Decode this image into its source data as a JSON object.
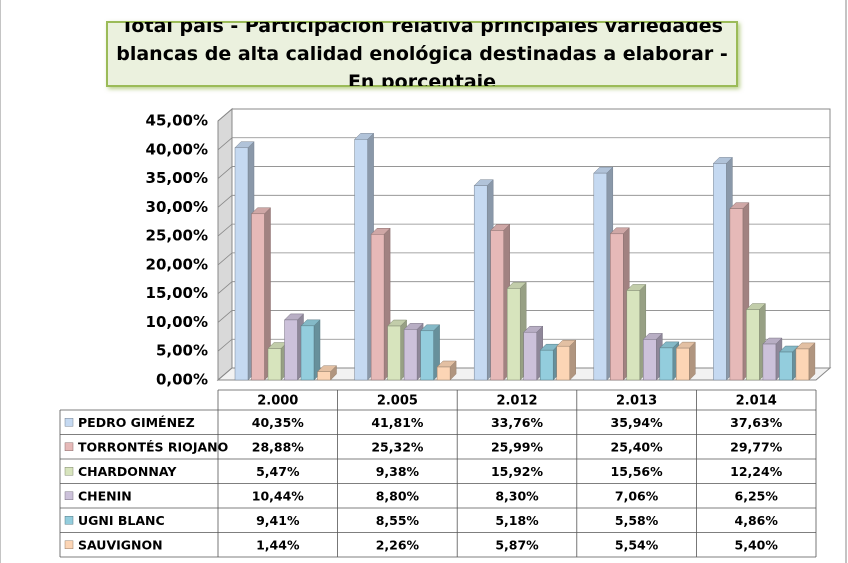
{
  "chart_data": {
    "type": "bar3d",
    "title": "Total pais  - Participación relativa principales variedades blancas de alta calidad enológica destinadas a elaborar - En porcentaje",
    "categories": [
      "2.000",
      "2.005",
      "2.012",
      "2.013",
      "2.014"
    ],
    "series": [
      {
        "name": "PEDRO GIMÉNEZ",
        "color": "#c5d9f1",
        "values": [
          40.35,
          41.81,
          33.76,
          35.94,
          37.63
        ],
        "value_labels": [
          "40,35%",
          "41,81%",
          "33,76%",
          "35,94%",
          "37,63%"
        ]
      },
      {
        "name": "TORRONTÉS RIOJANO",
        "color": "#e6b9b8",
        "values": [
          28.88,
          25.32,
          25.99,
          25.4,
          29.77
        ],
        "value_labels": [
          "28,88%",
          "25,32%",
          "25,99%",
          "25,40%",
          "29,77%"
        ]
      },
      {
        "name": "CHARDONNAY",
        "color": "#d7e4bd",
        "values": [
          5.47,
          9.38,
          15.92,
          15.56,
          12.24
        ],
        "value_labels": [
          "5,47%",
          "9,38%",
          "15,92%",
          "15,56%",
          "12,24%"
        ]
      },
      {
        "name": "CHENIN",
        "color": "#ccc1da",
        "values": [
          10.44,
          8.8,
          8.3,
          7.06,
          6.25
        ],
        "value_labels": [
          "10,44%",
          "8,80%",
          "8,30%",
          "7,06%",
          "6,25%"
        ]
      },
      {
        "name": "UGNI BLANC",
        "color": "#93cddd",
        "values": [
          9.41,
          8.55,
          5.18,
          5.58,
          4.86
        ],
        "value_labels": [
          "9,41%",
          "8,55%",
          "5,18%",
          "5,58%",
          "4,86%"
        ]
      },
      {
        "name": "SAUVIGNON",
        "color": "#fcd5b5",
        "values": [
          1.44,
          2.26,
          5.87,
          5.54,
          5.4
        ],
        "value_labels": [
          "1,44%",
          "2,26%",
          "5,87%",
          "5,54%",
          "5,40%"
        ]
      }
    ],
    "ylim": [
      0,
      45
    ],
    "yticks": [
      {
        "value": 0,
        "label": "0,00%"
      },
      {
        "value": 5,
        "label": "5,00%"
      },
      {
        "value": 10,
        "label": "10,00%"
      },
      {
        "value": 15,
        "label": "15,00%"
      },
      {
        "value": 20,
        "label": "20,00%"
      },
      {
        "value": 25,
        "label": "25,00%"
      },
      {
        "value": 30,
        "label": "30,00%"
      },
      {
        "value": 35,
        "label": "35,00%"
      },
      {
        "value": 40,
        "label": "40,00%"
      },
      {
        "value": 45,
        "label": "45,00%"
      }
    ],
    "grid": true
  }
}
